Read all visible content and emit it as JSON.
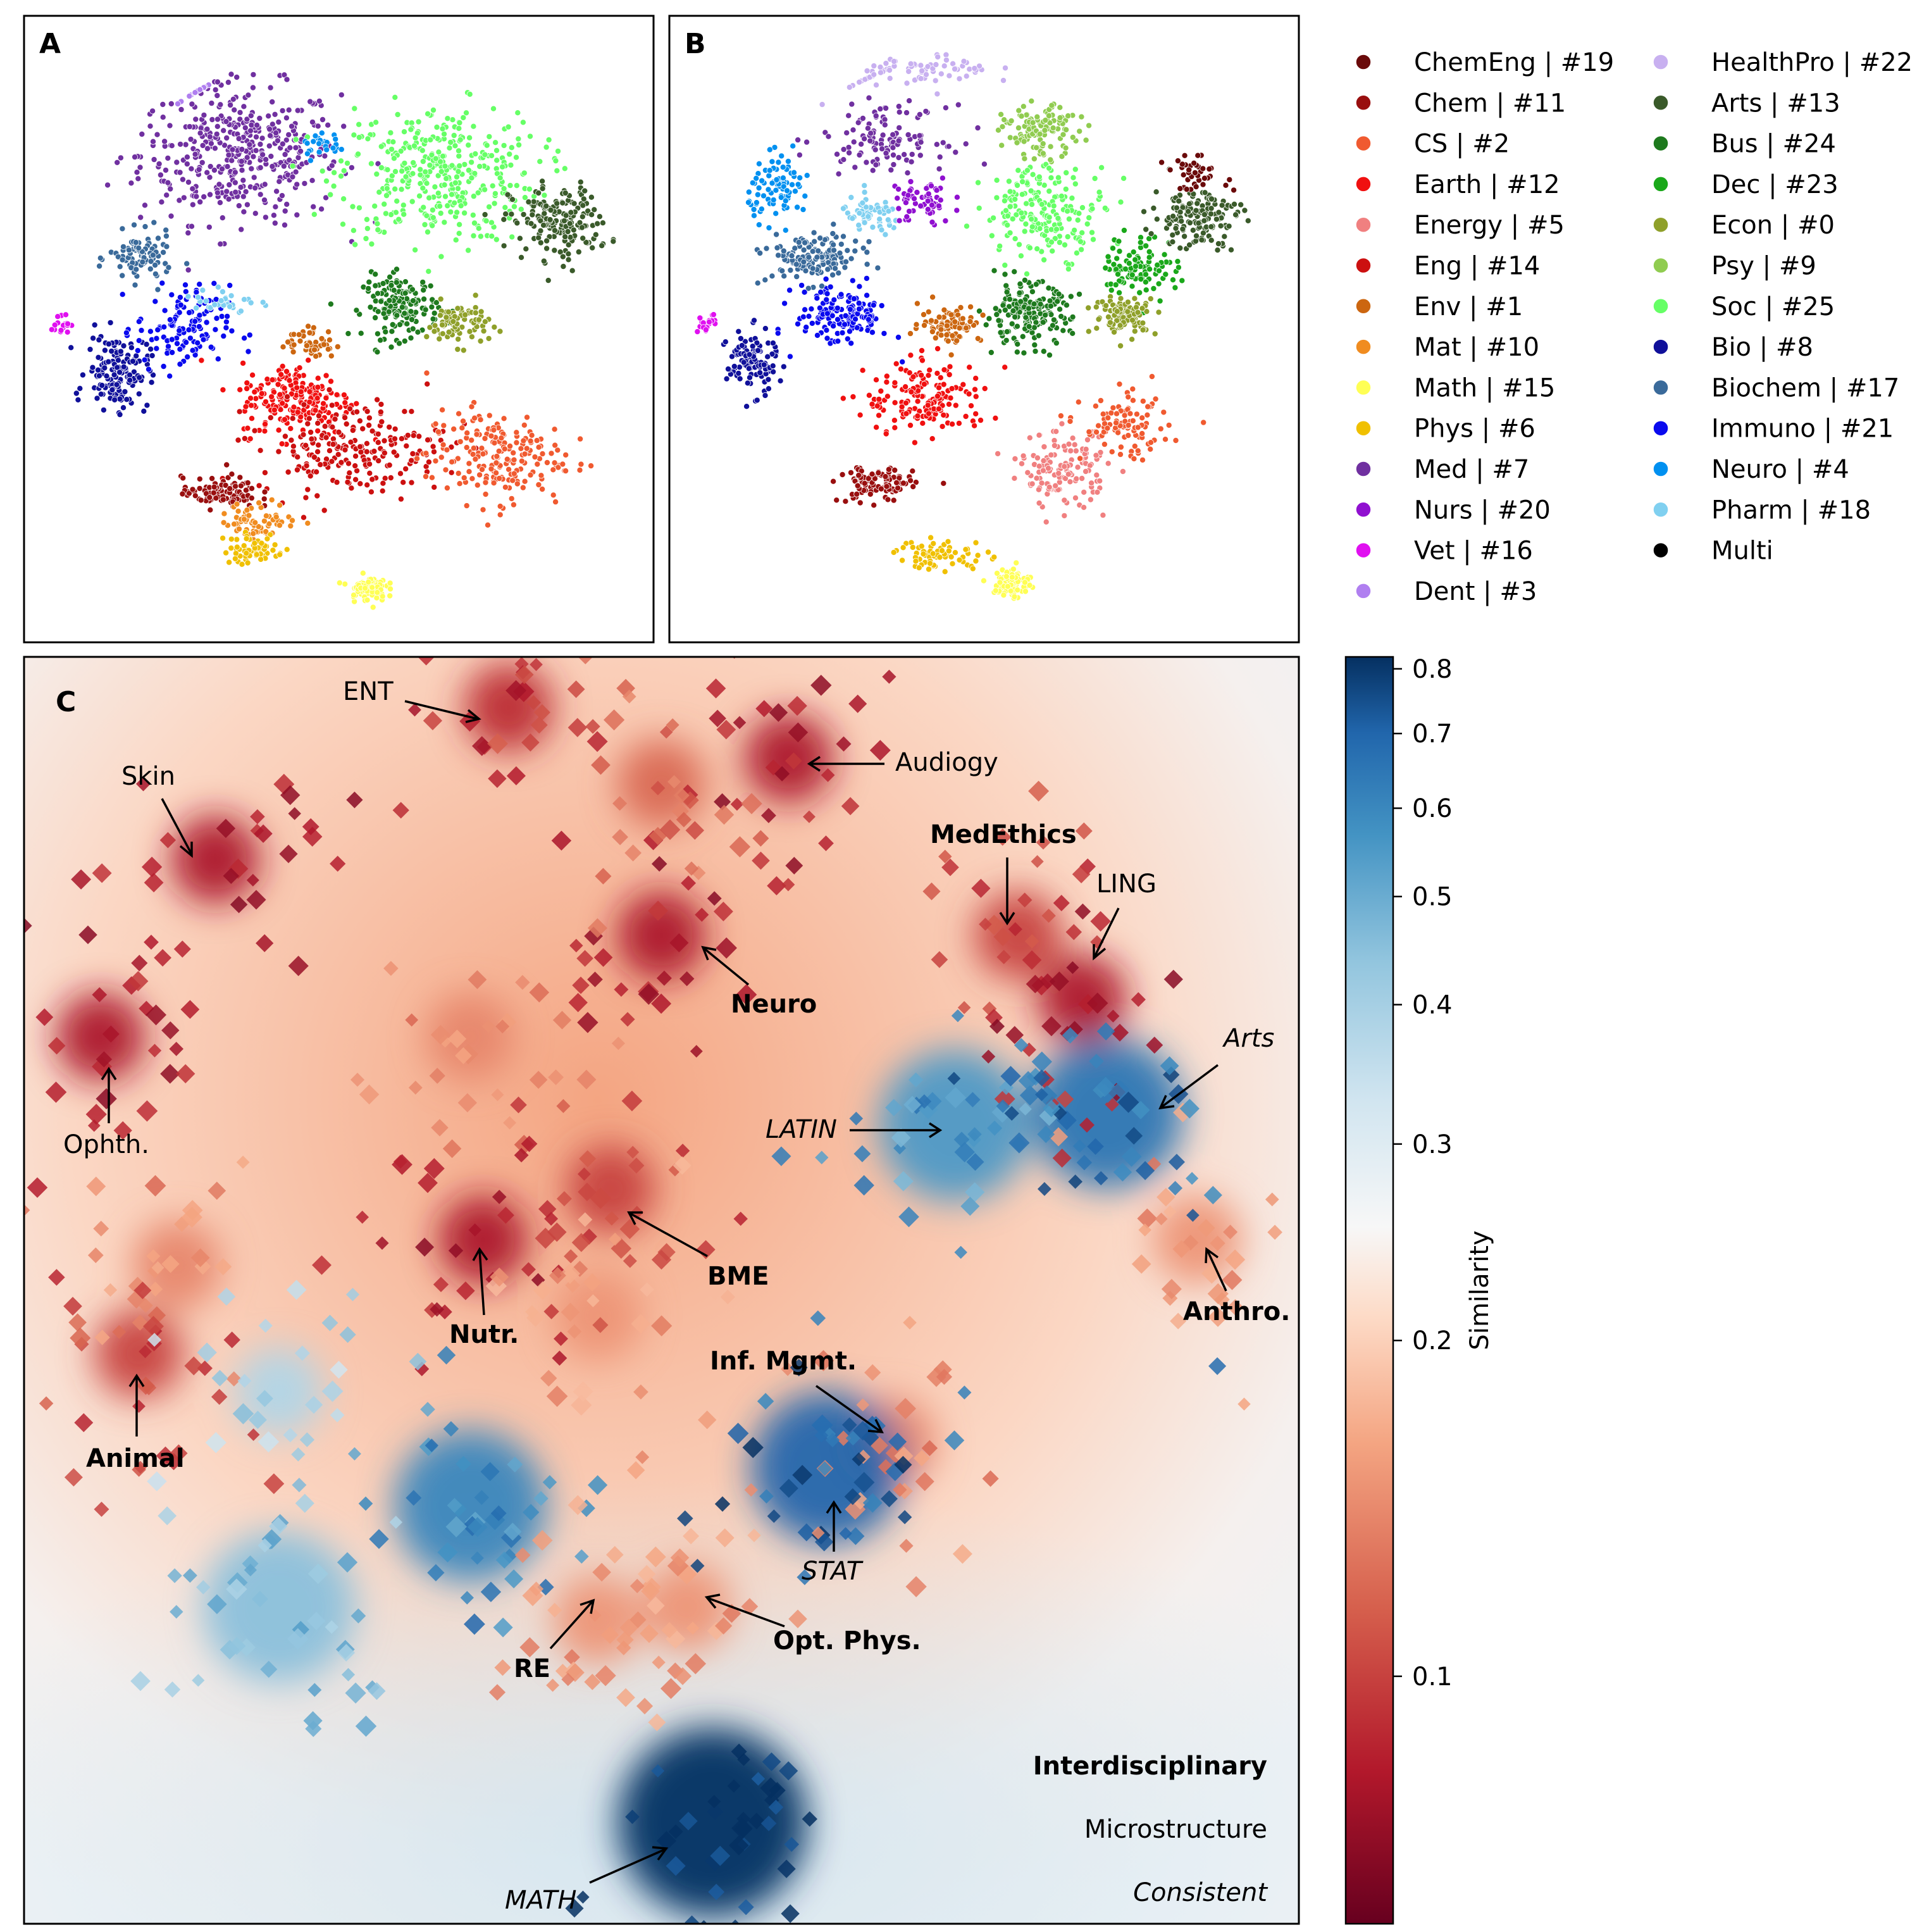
{
  "chart_data": [
    {
      "panel": "A",
      "type": "scatter",
      "title": "",
      "description_scope": "t-SNE embedding of papers colored by field cluster",
      "clusters": [
        {
          "label": "Med | #7",
          "color": "#7030a0",
          "center": [
            -0.35,
            0.62
          ],
          "spread": [
            0.32,
            0.22
          ],
          "count": 420
        },
        {
          "label": "Dent | #3",
          "color": "#b07ff0",
          "center": [
            -0.55,
            0.92
          ],
          "spread": [
            0.06,
            0.03
          ],
          "count": 30
        },
        {
          "label": "Soc | #25",
          "color": "#66ff66",
          "center": [
            0.35,
            0.55
          ],
          "spread": [
            0.32,
            0.22
          ],
          "count": 380
        },
        {
          "label": "Arts | #13",
          "color": "#3a5a2a",
          "center": [
            0.78,
            0.38
          ],
          "spread": [
            0.16,
            0.12
          ],
          "count": 180
        },
        {
          "label": "Bus | #24",
          "color": "#1e7a1e",
          "center": [
            0.22,
            0.08
          ],
          "spread": [
            0.12,
            0.1
          ],
          "count": 160
        },
        {
          "label": "Econ | #0",
          "color": "#8fa02a",
          "center": [
            0.42,
            0.02
          ],
          "spread": [
            0.1,
            0.07
          ],
          "count": 80
        },
        {
          "label": "Biochem | #17",
          "color": "#3a6a9a",
          "center": [
            -0.7,
            0.25
          ],
          "spread": [
            0.1,
            0.08
          ],
          "count": 90
        },
        {
          "label": "Bio | #8",
          "color": "#10109a",
          "center": [
            -0.78,
            -0.15
          ],
          "spread": [
            0.1,
            0.12
          ],
          "count": 150
        },
        {
          "label": "Immuno | #21",
          "color": "#0a0aee",
          "center": [
            -0.55,
            0.0
          ],
          "spread": [
            0.15,
            0.14
          ],
          "count": 130
        },
        {
          "label": "Vet | #16",
          "color": "#e010f0",
          "center": [
            -0.98,
            0.02
          ],
          "spread": [
            0.03,
            0.03
          ],
          "count": 20
        },
        {
          "label": "Earth | #12",
          "color": "#f01010",
          "center": [
            -0.15,
            -0.25
          ],
          "spread": [
            0.18,
            0.12
          ],
          "count": 200
        },
        {
          "label": "Eng | #14",
          "color": "#cc1010",
          "center": [
            0.05,
            -0.42
          ],
          "spread": [
            0.3,
            0.15
          ],
          "count": 220
        },
        {
          "label": "CS | #2",
          "color": "#f05a30",
          "center": [
            0.55,
            -0.45
          ],
          "spread": [
            0.22,
            0.15
          ],
          "count": 200
        },
        {
          "label": "Chem | #11",
          "color": "#990f0f",
          "center": [
            -0.42,
            -0.58
          ],
          "spread": [
            0.12,
            0.05
          ],
          "count": 100
        },
        {
          "label": "Env | #1",
          "color": "#cc6610",
          "center": [
            -0.1,
            -0.05
          ],
          "spread": [
            0.08,
            0.05
          ],
          "count": 50
        },
        {
          "label": "Mat | #10",
          "color": "#f08c20",
          "center": [
            -0.28,
            -0.68
          ],
          "spread": [
            0.12,
            0.06
          ],
          "count": 70
        },
        {
          "label": "Phys | #6",
          "color": "#f0c000",
          "center": [
            -0.3,
            -0.78
          ],
          "spread": [
            0.1,
            0.05
          ],
          "count": 60
        },
        {
          "label": "Math | #15",
          "color": "#ffff55",
          "center": [
            0.1,
            -0.92
          ],
          "spread": [
            0.06,
            0.04
          ],
          "count": 80
        },
        {
          "label": "Pharm | #18",
          "color": "#80d0f0",
          "center": [
            -0.4,
            0.1
          ],
          "spread": [
            0.1,
            0.05
          ],
          "count": 30
        },
        {
          "label": "Neuro | #4",
          "color": "#0090f0",
          "center": [
            -0.05,
            0.65
          ],
          "spread": [
            0.08,
            0.04
          ],
          "count": 25
        }
      ]
    },
    {
      "panel": "B",
      "type": "scatter",
      "title": "",
      "description_scope": "t-SNE embedding of papers colored by field cluster",
      "clusters": [
        {
          "label": "HealthPro | #22",
          "color": "#c8b0f0",
          "center": [
            -0.25,
            0.92
          ],
          "spread": [
            0.25,
            0.05
          ],
          "count": 80
        },
        {
          "label": "Neuro | #4",
          "color": "#0090f0",
          "center": [
            -0.72,
            0.5
          ],
          "spread": [
            0.1,
            0.1
          ],
          "count": 90
        },
        {
          "label": "Pharm | #18",
          "color": "#80d0f0",
          "center": [
            -0.4,
            0.4
          ],
          "spread": [
            0.1,
            0.06
          ],
          "count": 60
        },
        {
          "label": "Nurs | #20",
          "color": "#9010d0",
          "center": [
            -0.22,
            0.45
          ],
          "spread": [
            0.1,
            0.08
          ],
          "count": 60
        },
        {
          "label": "Med | #7",
          "color": "#7030a0",
          "center": [
            -0.35,
            0.68
          ],
          "spread": [
            0.2,
            0.1
          ],
          "count": 120
        },
        {
          "label": "Biochem | #17",
          "color": "#3a6a9a",
          "center": [
            -0.6,
            0.25
          ],
          "spread": [
            0.15,
            0.08
          ],
          "count": 140
        },
        {
          "label": "Immuno | #21",
          "color": "#0a0aee",
          "center": [
            -0.5,
            0.05
          ],
          "spread": [
            0.15,
            0.1
          ],
          "count": 150
        },
        {
          "label": "Bio | #8",
          "color": "#10109a",
          "center": [
            -0.82,
            -0.12
          ],
          "spread": [
            0.08,
            0.1
          ],
          "count": 110
        },
        {
          "label": "Vet | #16",
          "color": "#e010f0",
          "center": [
            -0.98,
            0.02
          ],
          "spread": [
            0.03,
            0.03
          ],
          "count": 20
        },
        {
          "label": "Psy | #9",
          "color": "#90cc50",
          "center": [
            0.2,
            0.7
          ],
          "spread": [
            0.12,
            0.08
          ],
          "count": 120
        },
        {
          "label": "Soc | #25",
          "color": "#66ff66",
          "center": [
            0.22,
            0.42
          ],
          "spread": [
            0.2,
            0.15
          ],
          "count": 200
        },
        {
          "label": "Dec | #23",
          "color": "#1aa81a",
          "center": [
            0.55,
            0.22
          ],
          "spread": [
            0.12,
            0.1
          ],
          "count": 100
        },
        {
          "label": "Arts | #13",
          "color": "#3a5a2a",
          "center": [
            0.75,
            0.4
          ],
          "spread": [
            0.14,
            0.1
          ],
          "count": 140
        },
        {
          "label": "Bus | #24",
          "color": "#1e7a1e",
          "center": [
            0.15,
            0.05
          ],
          "spread": [
            0.14,
            0.1
          ],
          "count": 180
        },
        {
          "label": "Econ | #0",
          "color": "#8fa02a",
          "center": [
            0.5,
            0.05
          ],
          "spread": [
            0.1,
            0.06
          ],
          "count": 100
        },
        {
          "label": "Env | #1",
          "color": "#cc6610",
          "center": [
            -0.12,
            0.02
          ],
          "spread": [
            0.1,
            0.06
          ],
          "count": 80
        },
        {
          "label": "Earth | #12",
          "color": "#f01010",
          "center": [
            -0.2,
            -0.25
          ],
          "spread": [
            0.2,
            0.12
          ],
          "count": 160
        },
        {
          "label": "Energy | #5",
          "color": "#f08080",
          "center": [
            0.28,
            -0.5
          ],
          "spread": [
            0.14,
            0.12
          ],
          "count": 140
        },
        {
          "label": "CS | #2",
          "color": "#f05a30",
          "center": [
            0.5,
            -0.35
          ],
          "spread": [
            0.14,
            0.1
          ],
          "count": 100
        },
        {
          "label": "Chem | #11",
          "color": "#990f0f",
          "center": [
            -0.38,
            -0.55
          ],
          "spread": [
            0.12,
            0.06
          ],
          "count": 110
        },
        {
          "label": "ChemEng | #19",
          "color": "#6a0a0a",
          "center": [
            0.75,
            0.55
          ],
          "spread": [
            0.1,
            0.05
          ],
          "count": 40
        },
        {
          "label": "Phys | #6",
          "color": "#f0c000",
          "center": [
            -0.15,
            -0.8
          ],
          "spread": [
            0.15,
            0.05
          ],
          "count": 70
        },
        {
          "label": "Math | #15",
          "color": "#ffff55",
          "center": [
            0.1,
            -0.9
          ],
          "spread": [
            0.06,
            0.05
          ],
          "count": 90
        }
      ]
    },
    {
      "panel": "C",
      "type": "heatmap",
      "colorbar": {
        "label": "Similarity",
        "scale": "log",
        "range": [
          0.06,
          0.82
        ],
        "ticks": [
          "0.1",
          "0.2",
          "0.3",
          "0.4",
          "0.5",
          "0.6",
          "0.7",
          "0.8"
        ],
        "colormap": "RdBu"
      },
      "hotspots": [
        {
          "x": 0.15,
          "y": 0.84,
          "value": 0.08
        },
        {
          "x": 0.06,
          "y": 0.7,
          "value": 0.08
        },
        {
          "x": 0.38,
          "y": 0.96,
          "value": 0.09
        },
        {
          "x": 0.6,
          "y": 0.92,
          "value": 0.08
        },
        {
          "x": 0.5,
          "y": 0.78,
          "value": 0.08
        },
        {
          "x": 0.5,
          "y": 0.9,
          "value": 0.12
        },
        {
          "x": 0.78,
          "y": 0.78,
          "value": 0.1
        },
        {
          "x": 0.83,
          "y": 0.73,
          "value": 0.08
        },
        {
          "x": 0.35,
          "y": 0.7,
          "value": 0.14
        },
        {
          "x": 0.46,
          "y": 0.58,
          "value": 0.1
        },
        {
          "x": 0.36,
          "y": 0.54,
          "value": 0.08
        },
        {
          "x": 0.12,
          "y": 0.52,
          "value": 0.14
        },
        {
          "x": 0.09,
          "y": 0.45,
          "value": 0.1
        },
        {
          "x": 0.45,
          "y": 0.48,
          "value": 0.15
        },
        {
          "x": 0.68,
          "y": 0.38,
          "value": 0.14
        },
        {
          "x": 0.92,
          "y": 0.54,
          "value": 0.15
        },
        {
          "x": 0.73,
          "y": 0.63,
          "value": 0.55
        },
        {
          "x": 0.85,
          "y": 0.64,
          "value": 0.65
        },
        {
          "x": 0.63,
          "y": 0.36,
          "value": 0.7
        },
        {
          "x": 0.35,
          "y": 0.33,
          "value": 0.6
        },
        {
          "x": 0.54,
          "y": 0.08,
          "value": 0.82
        },
        {
          "x": 0.2,
          "y": 0.25,
          "value": 0.45
        },
        {
          "x": 0.2,
          "y": 0.42,
          "value": 0.38
        },
        {
          "x": 0.45,
          "y": 0.24,
          "value": 0.15
        },
        {
          "x": 0.52,
          "y": 0.25,
          "value": 0.15
        }
      ]
    }
  ],
  "panels": {
    "a_label": "A",
    "b_label": "B",
    "c_label": "C"
  },
  "legend": {
    "col1": [
      {
        "label": "ChemEng | #19",
        "color": "#6a0a0a"
      },
      {
        "label": "Chem | #11",
        "color": "#990f0f"
      },
      {
        "label": "CS | #2",
        "color": "#f05a30"
      },
      {
        "label": "Earth | #12",
        "color": "#f01010"
      },
      {
        "label": "Energy | #5",
        "color": "#f08080"
      },
      {
        "label": "Eng | #14",
        "color": "#cc1010"
      },
      {
        "label": "Env | #1",
        "color": "#cc6610"
      },
      {
        "label": "Mat | #10",
        "color": "#f08c20"
      },
      {
        "label": "Math | #15",
        "color": "#ffff55"
      },
      {
        "label": "Phys | #6",
        "color": "#f0c000"
      },
      {
        "label": "Med | #7",
        "color": "#7030a0"
      },
      {
        "label": "Nurs | #20",
        "color": "#9010d0"
      },
      {
        "label": "Vet | #16",
        "color": "#e010f0"
      },
      {
        "label": "Dent | #3",
        "color": "#b07ff0"
      }
    ],
    "col2": [
      {
        "label": "HealthPro | #22",
        "color": "#c8b0f0"
      },
      {
        "label": "Arts | #13",
        "color": "#3a5a2a"
      },
      {
        "label": "Bus | #24",
        "color": "#1e7a1e"
      },
      {
        "label": "Dec | #23",
        "color": "#1aa81a"
      },
      {
        "label": "Econ | #0",
        "color": "#8fa02a"
      },
      {
        "label": "Psy | #9",
        "color": "#90cc50"
      },
      {
        "label": "Soc | #25",
        "color": "#66ff66"
      },
      {
        "label": "Bio | #8",
        "color": "#10109a"
      },
      {
        "label": "Biochem | #17",
        "color": "#3a6a9a"
      },
      {
        "label": "Immuno | #21",
        "color": "#0a0aee"
      },
      {
        "label": "Neuro | #4",
        "color": "#0090f0"
      },
      {
        "label": "Pharm | #18",
        "color": "#80d0f0"
      },
      {
        "label": "Multi",
        "color": "#000000"
      }
    ]
  },
  "annotations": [
    {
      "text": "ENT",
      "style": "normal"
    },
    {
      "text": "Audiogy",
      "style": "normal"
    },
    {
      "text": "Skin",
      "style": "normal"
    },
    {
      "text": "MedEthics",
      "style": "bold"
    },
    {
      "text": "LING",
      "style": "normal"
    },
    {
      "text": "Neuro",
      "style": "bold"
    },
    {
      "text": "Arts",
      "style": "italic"
    },
    {
      "text": "Ophth.",
      "style": "normal"
    },
    {
      "text": "LATIN",
      "style": "italic"
    },
    {
      "text": "BME",
      "style": "bold"
    },
    {
      "text": "Nutr.",
      "style": "bold"
    },
    {
      "text": "Anthro.",
      "style": "bold"
    },
    {
      "text": "Inf. Mgmt.",
      "style": "bold"
    },
    {
      "text": "Animal",
      "style": "bold"
    },
    {
      "text": "STAT",
      "style": "italic"
    },
    {
      "text": "Opt. Phys.",
      "style": "bold"
    },
    {
      "text": "RE",
      "style": "bold"
    },
    {
      "text": "MATH",
      "style": "italic"
    }
  ],
  "key": {
    "bold": "Interdisciplinary",
    "normal": "Microstructure",
    "italic": "Consistent"
  }
}
